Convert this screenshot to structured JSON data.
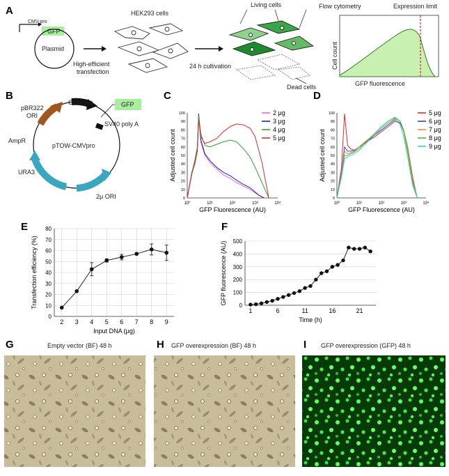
{
  "panel_labels": {
    "A": "A",
    "B": "B",
    "C": "C",
    "D": "D",
    "E": "E",
    "F": "F",
    "G": "G",
    "H": "H",
    "I": "I"
  },
  "panelA": {
    "cmv_pro": "CMV-pro",
    "gfp": "GFP",
    "plasmid": "Plasmid",
    "hek": "HEK293 cells",
    "transfection_1": "High-efficient",
    "transfection_2": "transfection",
    "cultivation": "24 h cultivation",
    "living": "Living cells",
    "dead": "Dead cells",
    "flow_title": "Flow cytometry",
    "expr_limit": "Expression limit",
    "cell_count": "Cell count",
    "gfp_fluor": "GFP fluorescence",
    "fill_color": "#c8f0b0",
    "limit_color": "#e02020"
  },
  "panelB": {
    "pbr322_1": "pBR322",
    "pbr322_2": "ORI",
    "cmv_pro": "CMV-pro",
    "gfp": "GFP",
    "sv40": "SV40 poly A",
    "ampr": "AmpR",
    "name": "pTOW-CMVpro",
    "ura3": "URA3",
    "ori2": "2μ ORI",
    "ampr_color": "#a0561e",
    "ura3_color": "#3aa6c0",
    "cmv_color": "#111111",
    "gfp_color": "#a8eea0"
  },
  "panelG": {
    "title": "Empty vector (BF) 48 h"
  },
  "panelH": {
    "title": "GFP overexpression (BF) 48 h"
  },
  "panelI": {
    "title": "GFP overexpression (GFP) 48 h"
  },
  "chart_data": [
    {
      "id": "C",
      "type": "line",
      "xlabel": "GFP Fluorescence (AU)",
      "ylabel": "Adjusted cell count",
      "x_scale": "log",
      "xlim": [
        1,
        10000
      ],
      "ylim": [
        0,
        100
      ],
      "x_ticks": [
        "10⁰",
        "10¹",
        "10²",
        "10³",
        "10⁴"
      ],
      "y_ticks": [
        "0",
        "10",
        "20",
        "30",
        "40",
        "50",
        "60",
        "70",
        "80",
        "90",
        "100"
      ],
      "series": [
        {
          "name": "2 μg",
          "color": "#ee66cc",
          "x": [
            1,
            1.6,
            2.2,
            2.8,
            3.2,
            4,
            6,
            10,
            20,
            40,
            80,
            150,
            300,
            600,
            1000,
            1500,
            2500
          ],
          "y": [
            0,
            30,
            40,
            55,
            99,
            65,
            50,
            42,
            34,
            27,
            23,
            18,
            14,
            10,
            6,
            3,
            0
          ]
        },
        {
          "name": "3 μg",
          "color": "#2020c0",
          "x": [
            1,
            1.6,
            2.2,
            2.8,
            3.2,
            4,
            6,
            10,
            20,
            40,
            80,
            150,
            300,
            600,
            1000,
            1500,
            2500
          ],
          "y": [
            0,
            30,
            42,
            58,
            99,
            68,
            52,
            44,
            36,
            30,
            26,
            21,
            16,
            12,
            7,
            3,
            0
          ]
        },
        {
          "name": "4 μg",
          "color": "#30a030",
          "x": [
            1,
            1.6,
            2.2,
            2.8,
            3.2,
            4,
            6,
            10,
            20,
            40,
            80,
            150,
            300,
            600,
            1000,
            2000,
            4000
          ],
          "y": [
            0,
            30,
            45,
            60,
            97,
            75,
            62,
            60,
            63,
            66,
            68,
            66,
            58,
            48,
            36,
            18,
            0
          ]
        },
        {
          "name": "5 μg",
          "color": "#e02a2a",
          "x": [
            1,
            1.6,
            2.2,
            2.8,
            3.2,
            4,
            6,
            10,
            20,
            40,
            80,
            150,
            300,
            600,
            1000,
            2000,
            4000
          ],
          "y": [
            0,
            28,
            42,
            55,
            92,
            72,
            64,
            66,
            70,
            78,
            84,
            87,
            86,
            82,
            72,
            42,
            0
          ]
        }
      ]
    },
    {
      "id": "D",
      "type": "line",
      "xlabel": "GFP Fluorescence (AU)",
      "ylabel": "Adjusted cell count",
      "x_scale": "log",
      "xlim": [
        1,
        10000
      ],
      "ylim": [
        0,
        100
      ],
      "x_ticks": [
        "10⁰",
        "10¹",
        "10²",
        "10³",
        "10⁴"
      ],
      "y_ticks": [
        "0",
        "10",
        "20",
        "30",
        "40",
        "50",
        "60",
        "70",
        "80",
        "90",
        "100"
      ],
      "series": [
        {
          "name": "5 μg",
          "color": "#e02a2a",
          "x": [
            1,
            1.6,
            2.2,
            3,
            4,
            6,
            10,
            20,
            50,
            100,
            200,
            400,
            700,
            1000,
            1500,
            2500,
            4000
          ],
          "y": [
            0,
            35,
            99,
            62,
            58,
            56,
            60,
            65,
            72,
            78,
            84,
            90,
            88,
            80,
            60,
            25,
            0
          ]
        },
        {
          "name": "6 μg",
          "color": "#4040b8",
          "x": [
            1,
            1.6,
            2.2,
            3,
            4,
            6,
            10,
            20,
            50,
            100,
            200,
            400,
            700,
            1000,
            1500,
            2500,
            4000
          ],
          "y": [
            0,
            30,
            60,
            55,
            55,
            56,
            60,
            66,
            74,
            80,
            86,
            92,
            88,
            78,
            55,
            20,
            0
          ]
        },
        {
          "name": "7 μg",
          "color": "#ee8a3a",
          "x": [
            1,
            1.6,
            2.2,
            3,
            4,
            6,
            10,
            20,
            50,
            100,
            200,
            400,
            700,
            1000,
            1500,
            2500,
            4000
          ],
          "y": [
            0,
            28,
            55,
            52,
            53,
            55,
            60,
            67,
            75,
            82,
            88,
            94,
            90,
            80,
            58,
            22,
            0
          ]
        },
        {
          "name": "8 μg",
          "color": "#40c040",
          "x": [
            1,
            1.6,
            2.2,
            3,
            4,
            6,
            10,
            20,
            50,
            100,
            200,
            400,
            700,
            1000,
            1500,
            2500,
            4000
          ],
          "y": [
            0,
            26,
            50,
            50,
            52,
            54,
            58,
            66,
            76,
            84,
            90,
            95,
            90,
            78,
            54,
            18,
            0
          ]
        },
        {
          "name": "9 μg",
          "color": "#30d0e0",
          "x": [
            1,
            1.6,
            2.2,
            3,
            4,
            6,
            10,
            20,
            50,
            100,
            200,
            400,
            700,
            1000,
            1500,
            2500,
            4000
          ],
          "y": [
            0,
            24,
            46,
            48,
            50,
            52,
            56,
            64,
            74,
            82,
            88,
            93,
            86,
            72,
            48,
            15,
            0
          ]
        }
      ]
    },
    {
      "id": "E",
      "type": "line",
      "xlabel": "Input DNA (μg)",
      "ylabel": "Transfection efficiency (%)",
      "xlim": [
        1.5,
        9.5
      ],
      "ylim": [
        0,
        80
      ],
      "x_ticks": [
        "2",
        "3",
        "4",
        "5",
        "6",
        "7",
        "8",
        "9"
      ],
      "y_ticks": [
        "0",
        "10",
        "20",
        "30",
        "40",
        "50",
        "60",
        "70",
        "80"
      ],
      "x": [
        2,
        3,
        4,
        5,
        6,
        7,
        8,
        9
      ],
      "y": [
        8,
        23,
        43,
        51,
        54,
        57,
        61,
        58
      ],
      "err": [
        0,
        0,
        6,
        1.5,
        2.5,
        1,
        5,
        7
      ]
    },
    {
      "id": "F",
      "type": "line",
      "xlabel": "Time (h)",
      "ylabel": "GFP fluorescence (AU)",
      "xlim": [
        0,
        24
      ],
      "ylim": [
        0,
        500
      ],
      "x_ticks": [
        "1",
        "6",
        "11",
        "16",
        "21"
      ],
      "y_ticks": [
        "0",
        "100",
        "200",
        "300",
        "400",
        "500"
      ],
      "x": [
        1,
        2,
        3,
        4,
        5,
        6,
        7,
        8,
        9,
        10,
        11,
        12,
        13,
        14,
        15,
        16,
        17,
        18,
        19,
        20,
        21,
        22,
        23
      ],
      "y": [
        5,
        8,
        15,
        25,
        35,
        50,
        65,
        80,
        95,
        110,
        135,
        150,
        200,
        250,
        265,
        300,
        315,
        350,
        450,
        440,
        440,
        450,
        420
      ]
    }
  ]
}
